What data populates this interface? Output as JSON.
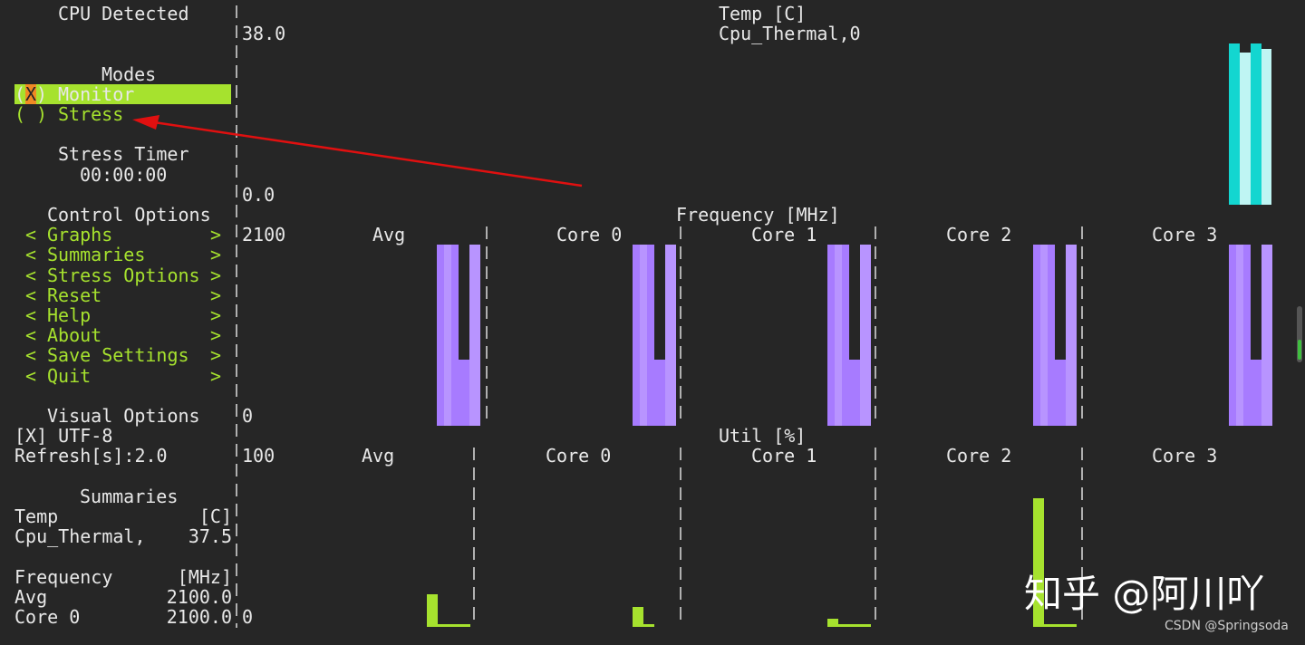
{
  "sidebar": {
    "cpu_detected": "CPU Detected",
    "modes": {
      "title": "Modes",
      "open": "(",
      "close": ")",
      "items": [
        {
          "mark": "X",
          "label": "Monitor"
        },
        {
          "mark": " ",
          "label": "Stress"
        }
      ]
    },
    "stress_timer": {
      "title": "Stress Timer",
      "value": "00:00:00"
    },
    "control_options": {
      "title": "Control Options",
      "left": "<",
      "right": ">",
      "items": [
        "Graphs",
        "Summaries",
        "Stress Options",
        "Reset",
        "Help",
        "About",
        "Save Settings",
        "Quit"
      ]
    },
    "visual_options": {
      "title": "Visual Options",
      "items": [
        "[X] UTF-8",
        "Refresh[s]:2.0"
      ]
    },
    "summaries": {
      "title": "Summaries",
      "rows": [
        [
          "Temp",
          "[C]"
        ],
        [
          "Cpu_Thermal,",
          "37.5"
        ],
        [
          "Frequency",
          "[MHz]"
        ],
        [
          "Avg",
          "2100.0"
        ],
        [
          "Core 0",
          "2100.0"
        ]
      ]
    }
  },
  "temp_graph": {
    "title": "Temp [C]",
    "sensor": "Cpu_Thermal,0",
    "y_max": "38.0",
    "y_min": "0.0"
  },
  "frequency_graph": {
    "title": "Frequency [MHz]",
    "y_max": "2100",
    "y_min": "0",
    "panels": [
      "Avg",
      "Core 0",
      "Core 1",
      "Core 2",
      "Core 3"
    ]
  },
  "util_graph": {
    "title": "Util [%]",
    "y_max": "100",
    "y_min": "0",
    "panels": [
      "Avg",
      "Core 0",
      "Core 1",
      "Core 2",
      "Core 3"
    ]
  },
  "watermark": {
    "logo": "知乎 @阿川吖",
    "credit": "CSDN @Springsoda"
  }
}
